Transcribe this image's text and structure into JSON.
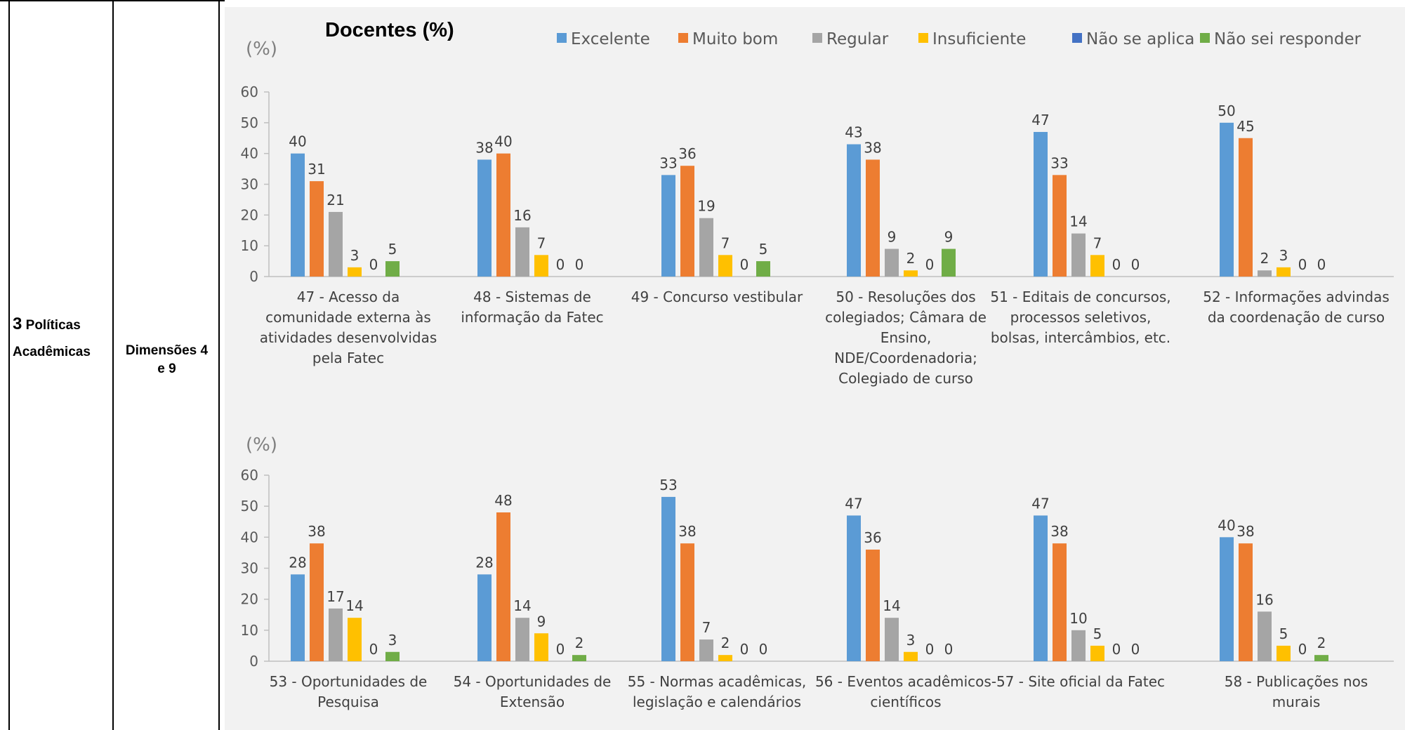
{
  "row": {
    "section_number": "3",
    "section_label_line1": "Políticas",
    "section_label_line2": "Acadêmicas",
    "dimension_line1": "Dimensões 4",
    "dimension_line2": "e 9"
  },
  "chart_data": {
    "type": "bar",
    "title": "Docentes (%)",
    "ylabel": "(%)",
    "ylim": [
      0,
      60
    ],
    "yticks": [
      0,
      10,
      20,
      30,
      40,
      50,
      60
    ],
    "grid": false,
    "legend_position": "top",
    "legend": [
      "Excelente",
      "Muito bom",
      "Regular",
      "Insuficiente",
      "Não se aplica",
      "Não sei responder"
    ],
    "colors": [
      "#5b9bd5",
      "#ed7d31",
      "#a5a5a5",
      "#ffc000",
      "#4472c4",
      "#70ad47"
    ],
    "panels": [
      {
        "ylabel": "(%)",
        "groups": [
          {
            "label": [
              "47 - Acesso da",
              "comunidade externa às",
              "atividades desenvolvidas",
              "pela Fatec"
            ],
            "values": [
              40,
              31,
              21,
              3,
              0,
              5
            ],
            "labels": [
              "40",
              "31",
              "21",
              "3",
              "0",
              "5"
            ]
          },
          {
            "label": [
              "48 - Sistemas de",
              "informação da Fatec"
            ],
            "values": [
              38,
              40,
              16,
              7,
              0,
              0
            ],
            "labels": [
              "38",
              "40",
              "16",
              "7",
              "0",
              "0"
            ]
          },
          {
            "label": [
              "49 - Concurso vestibular"
            ],
            "values": [
              33,
              36,
              19,
              7,
              0,
              5
            ],
            "labels": [
              "33",
              "36",
              "19",
              "7",
              "0",
              "5"
            ]
          },
          {
            "label": [
              "50 - Resoluções dos",
              "colegiados; Câmara de",
              "Ensino,",
              "NDE/Coordenadoria;",
              "Colegiado de curso"
            ],
            "values": [
              43,
              38,
              9,
              2,
              0,
              9
            ],
            "labels": [
              "43",
              "38",
              "9",
              "2",
              "0",
              "9"
            ]
          },
          {
            "label": [
              "51 - Editais de concursos,",
              "processos seletivos,",
              "bolsas, intercâmbios, etc."
            ],
            "values": [
              47,
              33,
              14,
              7,
              0,
              0
            ],
            "labels": [
              "47",
              "33",
              "14",
              "7",
              "0",
              "0"
            ]
          },
          {
            "label": [
              "52 - Informações advindas",
              "da coordenação de curso"
            ],
            "values": [
              50,
              45,
              2,
              3,
              0,
              0
            ],
            "labels": [
              "50",
              "45",
              "2",
              "3",
              "0",
              "0"
            ]
          }
        ]
      },
      {
        "ylabel": "(%)",
        "groups": [
          {
            "label": [
              "53 - Oportunidades de",
              "Pesquisa"
            ],
            "values": [
              28,
              38,
              17,
              14,
              0,
              3
            ],
            "labels": [
              "28",
              "38",
              "17",
              "14",
              "0",
              "3"
            ]
          },
          {
            "label": [
              "54 - Oportunidades de",
              "Extensão"
            ],
            "values": [
              28,
              48,
              14,
              9,
              0,
              2
            ],
            "labels": [
              "28",
              "48",
              "14",
              "9",
              "0",
              "2"
            ]
          },
          {
            "label": [
              "55 - Normas acadêmicas,",
              "legislação e calendários"
            ],
            "values": [
              53,
              38,
              7,
              2,
              0,
              0
            ],
            "labels": [
              "53",
              "38",
              "7",
              "2",
              "0",
              "0"
            ]
          },
          {
            "label": [
              "56 - Eventos acadêmicos-",
              "científicos"
            ],
            "values": [
              47,
              36,
              14,
              3,
              0,
              0
            ],
            "labels": [
              "47",
              "36",
              "14",
              "3",
              "0",
              "0"
            ]
          },
          {
            "label": [
              "57 - Site oficial da Fatec"
            ],
            "values": [
              47,
              38,
              10,
              5,
              0,
              0
            ],
            "labels": [
              "47",
              "38",
              "10",
              "5",
              "0",
              "0"
            ]
          },
          {
            "label": [
              "58 - Publicações nos",
              "murais"
            ],
            "values": [
              40,
              38,
              16,
              5,
              0,
              2
            ],
            "labels": [
              "40",
              "38",
              "16",
              "5",
              "0",
              "2"
            ]
          }
        ]
      }
    ]
  }
}
